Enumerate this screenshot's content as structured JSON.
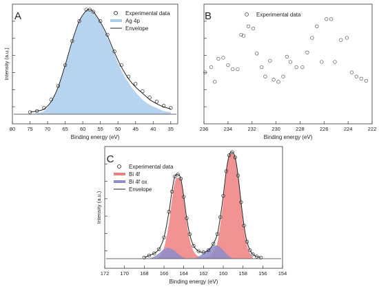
{
  "chart_data": [
    {
      "panel_label": "A",
      "type": "area",
      "xlabel": "Binding energy (eV)",
      "ylabel": "Intensity (a.u.)",
      "xlim": [
        80,
        33
      ],
      "x_reversed": true,
      "xticks": [
        80,
        75,
        70,
        65,
        60,
        55,
        50,
        45,
        40,
        35
      ],
      "ylim": [
        0,
        1.0
      ],
      "y_tick_labels": false,
      "legend_position": "top-right",
      "legend": [
        "Experimental data",
        "Ag 4p",
        "Envelope"
      ],
      "series": [
        {
          "name": "Experimental data",
          "style": "open-circle",
          "color": "#222222",
          "x": [
            75,
            73,
            71,
            69,
            67,
            65,
            63,
            61,
            59,
            58,
            57,
            55,
            53,
            51,
            49,
            47,
            45,
            43,
            41,
            39,
            37,
            35
          ],
          "y": [
            0.02,
            0.03,
            0.06,
            0.14,
            0.27,
            0.47,
            0.7,
            0.89,
            1.0,
            1.0,
            0.98,
            0.89,
            0.76,
            0.6,
            0.47,
            0.36,
            0.29,
            0.22,
            0.16,
            0.12,
            0.08,
            0.06
          ]
        },
        {
          "name": "Ag 4p",
          "style": "filled-area",
          "color": "#a9cdec",
          "x": [
            75,
            73,
            71,
            69,
            67,
            65,
            63,
            61,
            59,
            58,
            57,
            55,
            53,
            51,
            49,
            47,
            45,
            43,
            41,
            39,
            37,
            35
          ],
          "y": [
            0.0,
            0.01,
            0.03,
            0.11,
            0.25,
            0.46,
            0.69,
            0.88,
            0.98,
            0.99,
            0.97,
            0.87,
            0.73,
            0.57,
            0.42,
            0.3,
            0.21,
            0.14,
            0.09,
            0.06,
            0.03,
            0.02
          ]
        },
        {
          "name": "Envelope",
          "style": "line",
          "color": "#222222",
          "x": [
            75,
            73,
            71,
            69,
            67,
            65,
            63,
            61,
            59,
            58,
            57,
            55,
            53,
            51,
            49,
            47,
            45,
            43,
            41,
            39,
            37,
            35
          ],
          "y": [
            0.02,
            0.03,
            0.05,
            0.12,
            0.26,
            0.47,
            0.7,
            0.89,
            0.99,
            1.0,
            0.98,
            0.88,
            0.75,
            0.59,
            0.45,
            0.34,
            0.26,
            0.2,
            0.14,
            0.1,
            0.07,
            0.05
          ]
        }
      ]
    },
    {
      "panel_label": "B",
      "type": "scatter",
      "xlabel": "Binding energy (eV)",
      "ylabel": "",
      "xlim": [
        236,
        222
      ],
      "x_reversed": true,
      "xticks": [
        236,
        234,
        232,
        230,
        228,
        226,
        224,
        222
      ],
      "ylim": [
        0,
        1.0
      ],
      "y_tick_labels": false,
      "legend_position": "top-left",
      "legend": [
        "Experimental data"
      ],
      "series": [
        {
          "name": "Experimental data",
          "style": "open-circle",
          "color": "#555555",
          "x": [
            235.9,
            235.4,
            235.1,
            234.8,
            234.4,
            234.0,
            233.6,
            233.2,
            232.9,
            232.7,
            232.3,
            231.9,
            231.6,
            231.2,
            230.9,
            230.5,
            230.2,
            229.8,
            229.4,
            229.1,
            228.8,
            228.3,
            227.8,
            227.4,
            227.0,
            226.6,
            226.2,
            225.8,
            225.4,
            225.1,
            224.6,
            224.1,
            223.7,
            223.3,
            222.9,
            222.5
          ],
          "y": [
            0.4,
            0.45,
            0.31,
            0.53,
            0.54,
            0.47,
            0.43,
            0.43,
            0.76,
            0.75,
            0.84,
            0.82,
            0.58,
            0.45,
            0.36,
            0.51,
            0.33,
            0.31,
            0.36,
            0.55,
            0.5,
            0.45,
            0.45,
            0.59,
            0.73,
            0.84,
            0.5,
            0.91,
            0.91,
            0.5,
            0.71,
            0.73,
            0.4,
            0.36,
            0.34,
            0.32
          ]
        }
      ]
    },
    {
      "panel_label": "C",
      "type": "area",
      "xlabel": "Binding energy (eV)",
      "ylabel": "Intensity (a.u.)",
      "xlim": [
        172,
        154
      ],
      "x_reversed": true,
      "xticks": [
        172,
        170,
        168,
        166,
        164,
        162,
        160,
        158,
        156,
        154
      ],
      "ylim": [
        0,
        1.0
      ],
      "y_tick_labels": false,
      "legend_position": "top-left",
      "legend": [
        "Experimental data",
        "Bi 4f",
        "Bi 4f ox",
        "Envelope"
      ],
      "series": [
        {
          "name": "Experimental data",
          "style": "open-circle",
          "color": "#222222",
          "x": [
            168,
            167.5,
            167,
            166.5,
            166,
            165.5,
            165.2,
            164.9,
            164.6,
            164.3,
            164,
            163.7,
            163.4,
            163,
            162.5,
            162,
            161.5,
            161,
            160.6,
            160.3,
            160,
            159.7,
            159.4,
            159.1,
            158.8,
            158.5,
            158.2,
            157.9,
            157.6,
            157.3,
            157,
            156.6,
            156.2
          ],
          "y": [
            0.01,
            0.03,
            0.05,
            0.09,
            0.2,
            0.44,
            0.63,
            0.77,
            0.79,
            0.75,
            0.58,
            0.38,
            0.23,
            0.12,
            0.07,
            0.06,
            0.08,
            0.14,
            0.23,
            0.39,
            0.59,
            0.82,
            0.97,
            1.0,
            0.95,
            0.78,
            0.53,
            0.31,
            0.16,
            0.08,
            0.04,
            0.02,
            0.01
          ]
        },
        {
          "name": "Bi 4f",
          "style": "filled-area",
          "color": "#f08080",
          "x": [
            167,
            166.5,
            166,
            165.5,
            165.2,
            164.9,
            164.6,
            164.3,
            164,
            163.7,
            163.4,
            163,
            162.5,
            162,
            161.5,
            161,
            160.6,
            160.3,
            160,
            159.7,
            159.4,
            159.1,
            158.8,
            158.5,
            158.2,
            157.9,
            157.6,
            157.3,
            157
          ],
          "y": [
            0.0,
            0.02,
            0.1,
            0.33,
            0.55,
            0.72,
            0.76,
            0.73,
            0.55,
            0.34,
            0.18,
            0.07,
            0.02,
            0.01,
            0.02,
            0.06,
            0.15,
            0.32,
            0.54,
            0.79,
            0.96,
            0.99,
            0.94,
            0.76,
            0.5,
            0.28,
            0.13,
            0.05,
            0.01
          ]
        },
        {
          "name": "Bi 4f ox",
          "style": "filled-area",
          "color": "#8c8cc9",
          "x": [
            167.5,
            167,
            166.5,
            166,
            165.5,
            165,
            164.5,
            164,
            163.5,
            163,
            162.5,
            162,
            161.5,
            161,
            160.5,
            160,
            159.5,
            159
          ],
          "y": [
            0.0,
            0.02,
            0.05,
            0.09,
            0.1,
            0.08,
            0.04,
            0.01,
            0.0,
            0.0,
            0.02,
            0.05,
            0.09,
            0.12,
            0.12,
            0.08,
            0.03,
            0.0
          ]
        },
        {
          "name": "Envelope",
          "style": "line",
          "color": "#222222",
          "x": [
            168,
            167.5,
            167,
            166.5,
            166,
            165.5,
            165.2,
            164.9,
            164.6,
            164.3,
            164,
            163.7,
            163.4,
            163,
            162.5,
            162,
            161.5,
            161,
            160.6,
            160.3,
            160,
            159.7,
            159.4,
            159.1,
            158.8,
            158.5,
            158.2,
            157.9,
            157.6,
            157.3,
            157,
            156.6,
            156.2
          ],
          "y": [
            0.01,
            0.03,
            0.05,
            0.09,
            0.2,
            0.44,
            0.63,
            0.77,
            0.79,
            0.75,
            0.58,
            0.38,
            0.23,
            0.12,
            0.07,
            0.06,
            0.08,
            0.14,
            0.23,
            0.39,
            0.59,
            0.82,
            0.97,
            1.0,
            0.95,
            0.78,
            0.53,
            0.31,
            0.16,
            0.08,
            0.04,
            0.02,
            0.01
          ]
        }
      ]
    }
  ]
}
